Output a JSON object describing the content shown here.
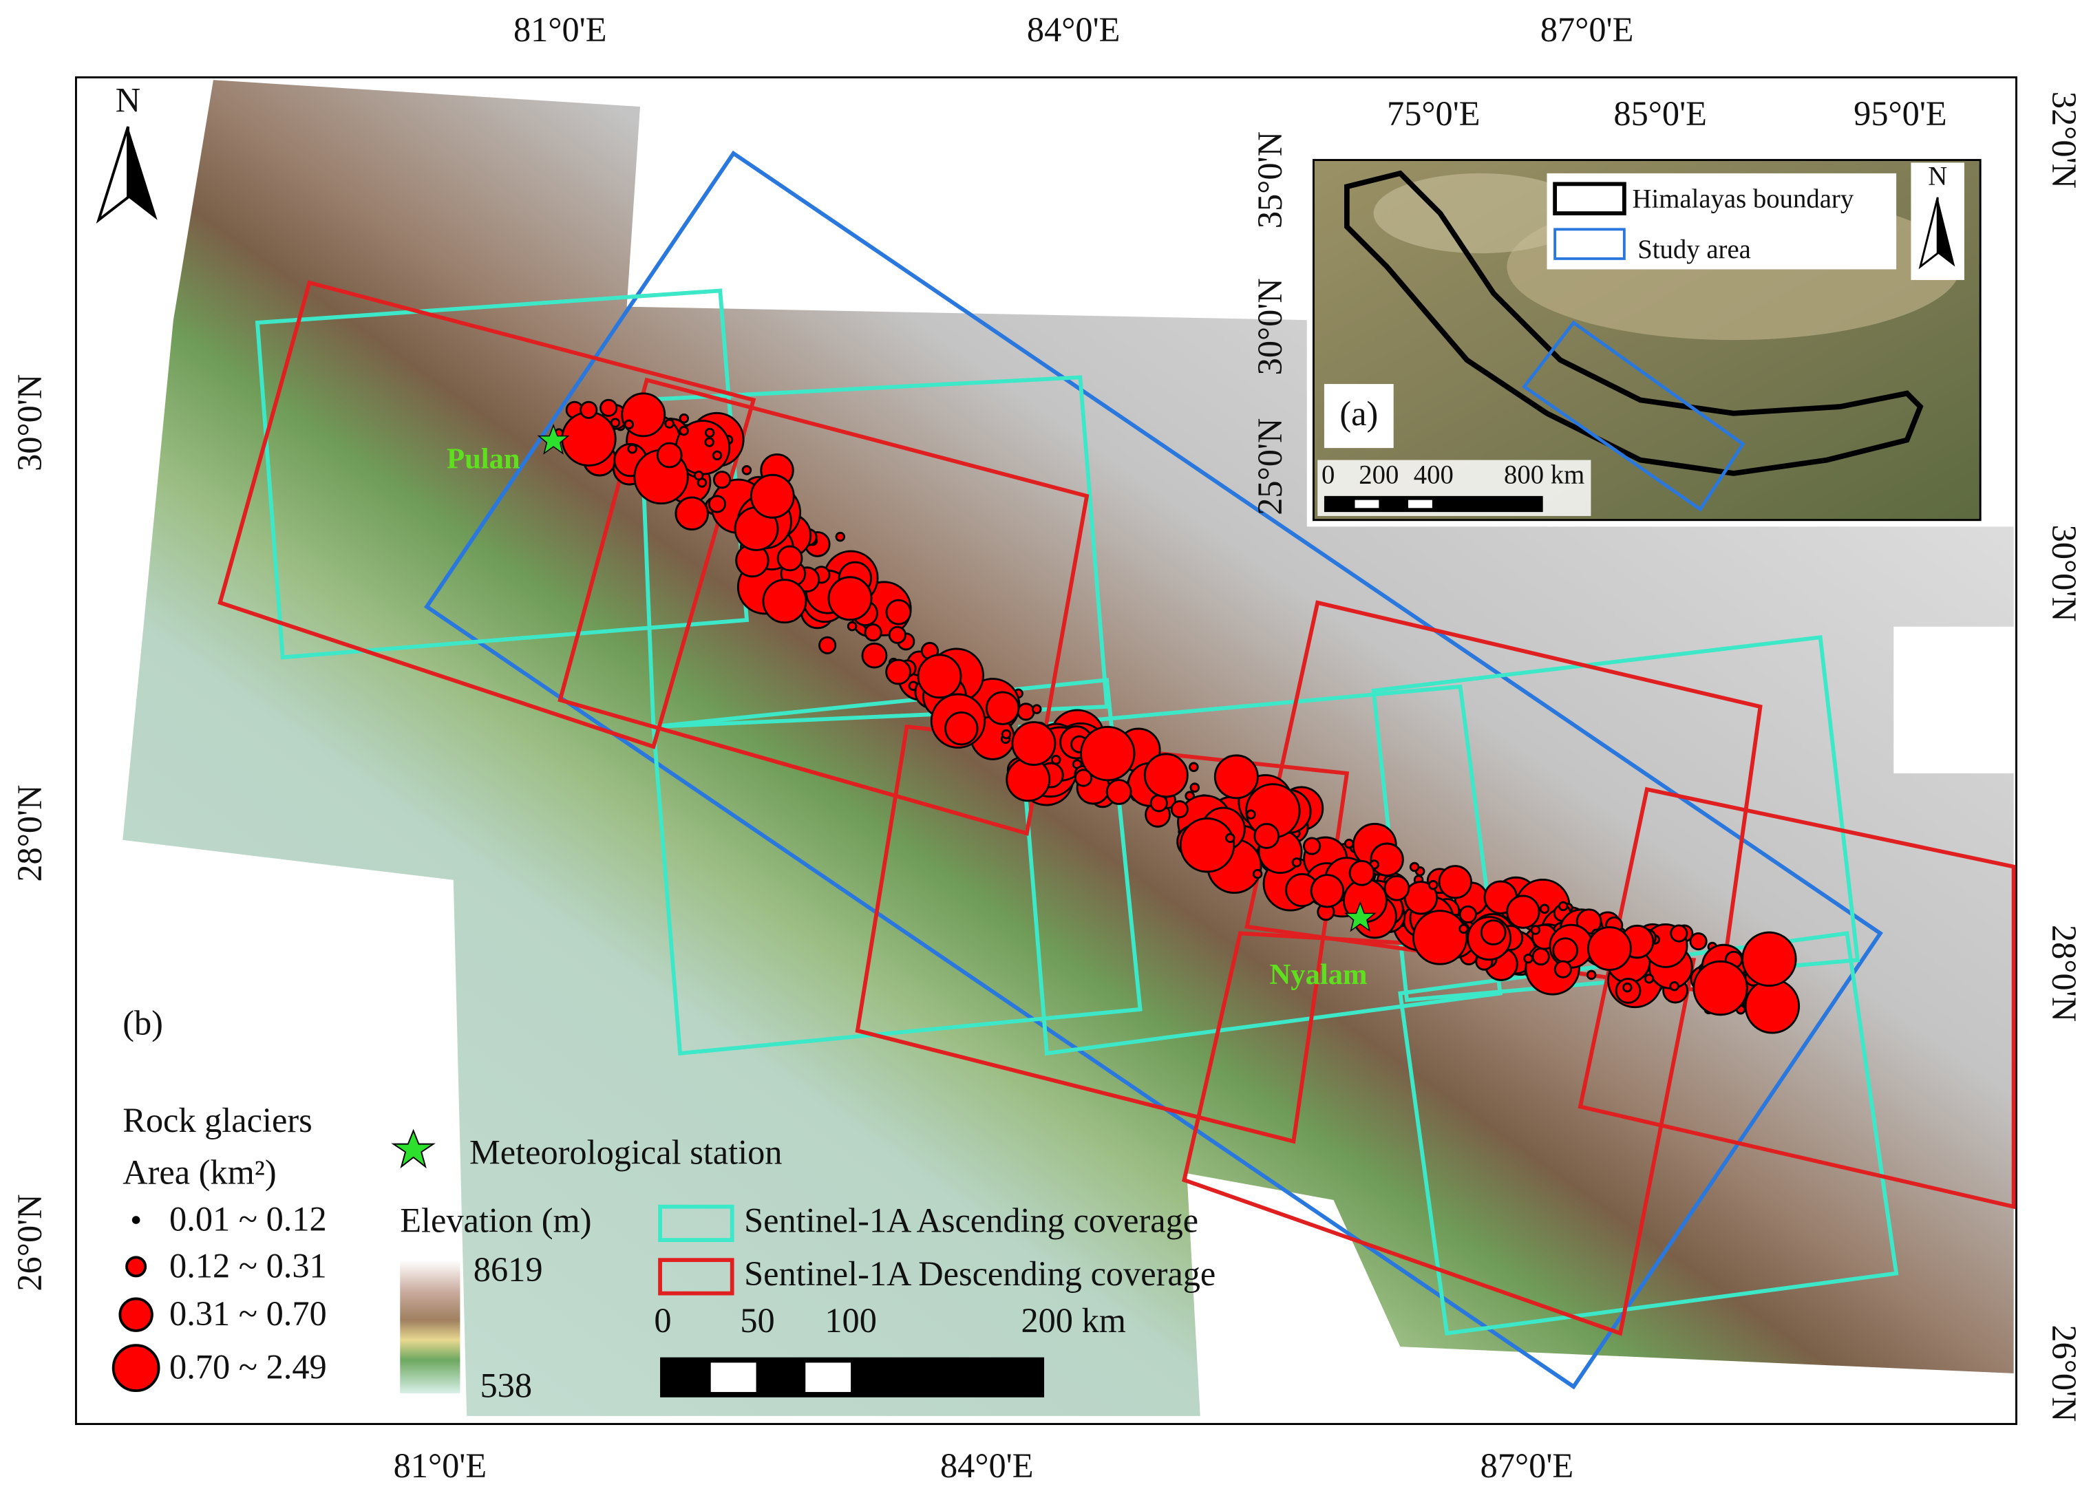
{
  "map": {
    "top_ticks": [
      "81°0'E",
      "84°0'E",
      "87°0'E"
    ],
    "bottom_ticks": [
      "81°0'E",
      "84°0'E",
      "87°0'E"
    ],
    "left_ticks": [
      "30°0'N",
      "28°0'N",
      "26°0'N"
    ],
    "right_ticks": [
      "32°0'N",
      "30°0'N",
      "28°0'N",
      "26°0'N"
    ],
    "north": "N",
    "stations": [
      "Pulan",
      "Nyalam"
    ],
    "panel_label": "(b)",
    "legend": {
      "rock_title": "Rock glaciers",
      "area_title": "Area (km²)",
      "classes": [
        "0.01 ~ 0.12",
        "0.12 ~ 0.31",
        "0.31 ~ 0.70",
        "0.70 ~ 2.49"
      ],
      "station": "Meteorological station",
      "elevation_title": "Elevation (m)",
      "elevation_max": "8619",
      "elevation_min": "538",
      "coverage": [
        "Sentinel-1A Ascending coverage",
        "Sentinel-1A Descending coverage"
      ],
      "scale": [
        "0",
        "50",
        "100",
        "200 km"
      ]
    },
    "inset": {
      "label": "(a)",
      "top_ticks": [
        "75°0'E",
        "85°0'E",
        "95°0'E"
      ],
      "left_ticks": [
        "35°0'N",
        "30°0'N",
        "25°0'N"
      ],
      "legend": [
        "Himalayas boundary",
        "Study area"
      ],
      "scale": [
        "0",
        "200",
        "400",
        "800 km"
      ],
      "north": "N"
    }
  }
}
